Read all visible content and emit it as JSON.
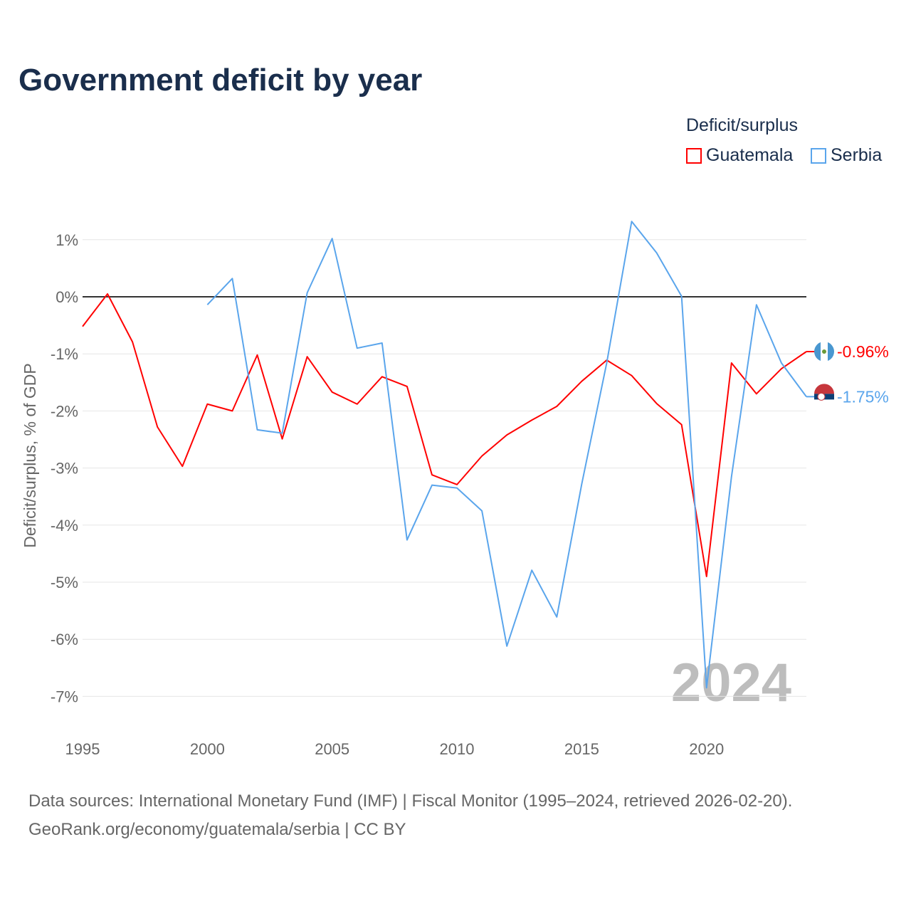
{
  "chart_data": {
    "type": "line",
    "title": "Government deficit by year",
    "ylabel": "Deficit/surplus, % of GDP",
    "xlabel": "",
    "xlim": [
      1995,
      2024
    ],
    "ylim": [
      -7.5,
      1.5
    ],
    "x_ticks": [
      1995,
      2000,
      2005,
      2010,
      2015,
      2020
    ],
    "y_ticks": [
      1,
      0,
      -1,
      -2,
      -3,
      -4,
      -5,
      -6,
      -7
    ],
    "y_tick_labels": [
      "1%",
      "0%",
      "-1%",
      "-2%",
      "-3%",
      "-4%",
      "-5%",
      "-6%",
      "-7%"
    ],
    "grid": true,
    "legend_title": "Deficit/surplus",
    "legend_position": "top-right",
    "year_watermark": "2024",
    "series": [
      {
        "name": "Guatemala",
        "color": "#ff0000",
        "end_label": "-0.96%",
        "x": [
          1995,
          1996,
          1997,
          1998,
          1999,
          2000,
          2001,
          2002,
          2003,
          2004,
          2005,
          2006,
          2007,
          2008,
          2009,
          2010,
          2011,
          2012,
          2013,
          2014,
          2015,
          2016,
          2017,
          2018,
          2019,
          2020,
          2021,
          2022,
          2023,
          2024
        ],
        "values": [
          -0.52,
          0.05,
          -0.79,
          -2.28,
          -2.97,
          -1.88,
          -2.0,
          -1.02,
          -2.49,
          -1.05,
          -1.67,
          -1.88,
          -1.4,
          -1.57,
          -3.12,
          -3.29,
          -2.79,
          -2.42,
          -2.16,
          -1.92,
          -1.48,
          -1.11,
          -1.38,
          -1.87,
          -2.24,
          -4.9,
          -1.16,
          -1.7,
          -1.26,
          -0.96
        ]
      },
      {
        "name": "Serbia",
        "color": "#5aa5ec",
        "end_label": "-1.75%",
        "x": [
          2000,
          2001,
          2002,
          2003,
          2004,
          2005,
          2006,
          2007,
          2008,
          2009,
          2010,
          2011,
          2012,
          2013,
          2014,
          2015,
          2016,
          2017,
          2018,
          2019,
          2020,
          2021,
          2022,
          2023,
          2024
        ],
        "values": [
          -0.14,
          0.32,
          -2.33,
          -2.39,
          0.07,
          1.02,
          -0.9,
          -0.81,
          -4.26,
          -3.3,
          -3.35,
          -3.75,
          -6.12,
          -4.79,
          -5.61,
          -3.28,
          -1.16,
          1.32,
          0.77,
          0.01,
          -6.85,
          -3.15,
          -0.14,
          -1.16,
          -1.75
        ]
      }
    ]
  },
  "source": {
    "line1": "Data sources: International Monetary Fund (IMF) | Fiscal Monitor (1995–2024, retrieved 2026-02-20).",
    "line2": "GeoRank.org/economy/guatemala/serbia | CC BY"
  }
}
